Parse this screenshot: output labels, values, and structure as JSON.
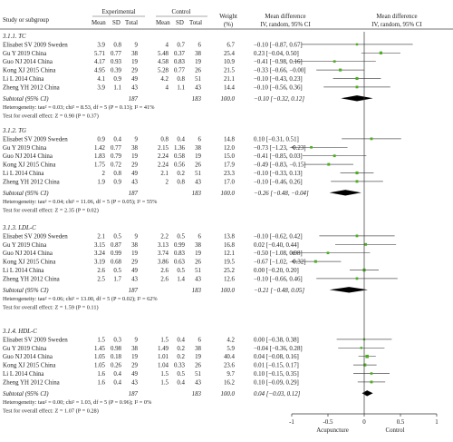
{
  "chart_data": {
    "type": "forest",
    "headers": {
      "study": "Study or subgroup",
      "experimental": "Experimental",
      "control": "Control",
      "mean": "Mean",
      "sd": "SD",
      "total": "Total",
      "weight": "Weight",
      "weight_unit": "(%)",
      "md": "Mean difference",
      "md_method": "IV, random, 95% CI",
      "plot_title": "Mean difference",
      "plot_method": "IV, random, 95% CI"
    },
    "xaxis": {
      "range": [
        -1,
        1
      ],
      "ticks": [
        -1,
        -0.5,
        0,
        0.5,
        1
      ],
      "tick_labels": [
        "-1",
        "-0.5",
        "0",
        "0.5",
        "1"
      ],
      "left_label": "Acupuncture",
      "right_label": "Control"
    },
    "colors": {
      "point": "#4caf1e",
      "diamond": "#000000",
      "line": "#555555"
    },
    "subgroups": [
      {
        "title": "3.1.1. TC",
        "studies": [
          {
            "name": "Elisabet SV 2009 Sweden",
            "e_mean": "3.9",
            "e_sd": "0.8",
            "e_total": "9",
            "c_mean": "4",
            "c_sd": "0.7",
            "c_total": "6",
            "weight": "6.7",
            "ci_text": "−0.10 [−0.87, 0.67]",
            "md": -0.1,
            "lo": -0.87,
            "hi": 0.67
          },
          {
            "name": "Gu Y 2019 China",
            "e_mean": "5.71",
            "e_sd": "0.77",
            "e_total": "38",
            "c_mean": "5.48",
            "c_sd": "0.37",
            "c_total": "38",
            "weight": "25.4",
            "ci_text": "0.23 [−0.04, 0.50]",
            "md": 0.23,
            "lo": -0.04,
            "hi": 0.5
          },
          {
            "name": "Guo NJ 2014 China",
            "e_mean": "4.17",
            "e_sd": "0.93",
            "e_total": "19",
            "c_mean": "4.58",
            "c_sd": "0.83",
            "c_total": "19",
            "weight": "10.9",
            "ci_text": "−0.41 [−0.98, 0.16]",
            "md": -0.41,
            "lo": -0.98,
            "hi": 0.16
          },
          {
            "name": "Kong XJ 2015 China",
            "e_mean": "4.95",
            "e_sd": "0.39",
            "e_total": "29",
            "c_mean": "5.28",
            "c_sd": "0.77",
            "c_total": "26",
            "weight": "21.5",
            "ci_text": "−0.33 [−0.66, −0.00]",
            "md": -0.33,
            "lo": -0.66,
            "hi": -0.0
          },
          {
            "name": "Li L 2014 China",
            "e_mean": "4.1",
            "e_sd": "0.9",
            "e_total": "49",
            "c_mean": "4.2",
            "c_sd": "0.8",
            "c_total": "51",
            "weight": "21.1",
            "ci_text": "−0.10 [−0.43, 0.23]",
            "md": -0.1,
            "lo": -0.43,
            "hi": 0.23
          },
          {
            "name": "Zheng YH 2012 China",
            "e_mean": "3.9",
            "e_sd": "1.1",
            "e_total": "43",
            "c_mean": "4",
            "c_sd": "1.1",
            "c_total": "43",
            "weight": "14.4",
            "ci_text": "−0.10 [−0.56, 0.36]",
            "md": -0.1,
            "lo": -0.56,
            "hi": 0.36
          }
        ],
        "subtotal": {
          "label": "Subtotal (95% CI)",
          "e_total": "187",
          "c_total": "183",
          "weight": "100.0",
          "ci_text": "−0.10 [−0.32, 0.12]",
          "md": -0.1,
          "lo": -0.32,
          "hi": 0.12
        },
        "heterogeneity": "Heterogeneity: tau² = 0.03; chi² = 8.53, df = 5 (P = 0.13); I² = 41%",
        "overall": "Test for overall effect: Z = 0.90 (P = 0.37)"
      },
      {
        "title": "3.1.2. TG",
        "studies": [
          {
            "name": "Elisabet SV 2009 Sweden",
            "e_mean": "0.9",
            "e_sd": "0.4",
            "e_total": "9",
            "c_mean": "0.8",
            "c_sd": "0.4",
            "c_total": "6",
            "weight": "14.8",
            "ci_text": "0.10 [−0.31, 0.51]",
            "md": 0.1,
            "lo": -0.31,
            "hi": 0.51
          },
          {
            "name": "Gu Y 2019 China",
            "e_mean": "1.42",
            "e_sd": "0.77",
            "e_total": "38",
            "c_mean": "2.15",
            "c_sd": "1.36",
            "c_total": "38",
            "weight": "12.0",
            "ci_text": "−0.73 [−1.23, −0.23]",
            "md": -0.73,
            "lo": -1.23,
            "hi": -0.23
          },
          {
            "name": "Guo NJ 2014 China",
            "e_mean": "1.83",
            "e_sd": "0.79",
            "e_total": "19",
            "c_mean": "2.24",
            "c_sd": "0.58",
            "c_total": "19",
            "weight": "15.0",
            "ci_text": "−0.41 [−0.85, 0.03]",
            "md": -0.41,
            "lo": -0.85,
            "hi": 0.03
          },
          {
            "name": "Kong XJ 2015 China",
            "e_mean": "1.75",
            "e_sd": "0.72",
            "e_total": "29",
            "c_mean": "2.24",
            "c_sd": "0.56",
            "c_total": "26",
            "weight": "17.9",
            "ci_text": "−0.49 [−0.83, −0.15]",
            "md": -0.49,
            "lo": -0.83,
            "hi": -0.15
          },
          {
            "name": "Li L 2014 China",
            "e_mean": "2",
            "e_sd": "0.8",
            "e_total": "49",
            "c_mean": "2.1",
            "c_sd": "0.2",
            "c_total": "51",
            "weight": "23.3",
            "ci_text": "−0.10 [−0.33, 0.13]",
            "md": -0.1,
            "lo": -0.33,
            "hi": 0.13
          },
          {
            "name": "Zheng YH 2012 China",
            "e_mean": "1.9",
            "e_sd": "0.9",
            "e_total": "43",
            "c_mean": "2",
            "c_sd": "0.8",
            "c_total": "43",
            "weight": "17.0",
            "ci_text": "−0.10 [−0.46, 0.26]",
            "md": -0.1,
            "lo": -0.46,
            "hi": 0.26
          }
        ],
        "subtotal": {
          "label": "Subtotal (95% CI)",
          "e_total": "187",
          "c_total": "183",
          "weight": "100.0",
          "ci_text": "−0.26 [−0.48, −0.04]",
          "md": -0.26,
          "lo": -0.48,
          "hi": -0.04
        },
        "heterogeneity": "Heterogeneity: tau² = 0.04; chi² = 11.06, df = 5 (P = 0.05); I² = 55%",
        "overall": "Test for overall effect: Z = 2.35 (P = 0.02)"
      },
      {
        "title": "3.1.3. LDL-C",
        "studies": [
          {
            "name": "Elisabet SV 2009 Sweden",
            "e_mean": "2.1",
            "e_sd": "0.5",
            "e_total": "9",
            "c_mean": "2.2",
            "c_sd": "0.5",
            "c_total": "6",
            "weight": "13.8",
            "ci_text": "−0.10 [−0.62, 0.42]",
            "md": -0.1,
            "lo": -0.62,
            "hi": 0.42
          },
          {
            "name": "Gu Y 2019 China",
            "e_mean": "3.15",
            "e_sd": "0.87",
            "e_total": "38",
            "c_mean": "3.13",
            "c_sd": "0.99",
            "c_total": "38",
            "weight": "16.8",
            "ci_text": "0.02 [−0.40, 0.44]",
            "md": 0.02,
            "lo": -0.4,
            "hi": 0.44
          },
          {
            "name": "Guo NJ 2014 China",
            "e_mean": "3.24",
            "e_sd": "0.99",
            "e_total": "19",
            "c_mean": "3.74",
            "c_sd": "0.83",
            "c_total": "19",
            "weight": "12.1",
            "ci_text": "−0.50 [−1.08, 0.08]",
            "md": -0.5,
            "lo": -1.08,
            "hi": 0.08
          },
          {
            "name": "Kong XJ 2015 China",
            "e_mean": "3.19",
            "e_sd": "0.68",
            "e_total": "29",
            "c_mean": "3.86",
            "c_sd": "0.63",
            "c_total": "26",
            "weight": "19.5",
            "ci_text": "−0.67 [−1.02, −0.32]",
            "md": -0.67,
            "lo": -1.02,
            "hi": -0.32
          },
          {
            "name": "Li L 2014 China",
            "e_mean": "2.6",
            "e_sd": "0.5",
            "e_total": "49",
            "c_mean": "2.6",
            "c_sd": "0.5",
            "c_total": "51",
            "weight": "25.2",
            "ci_text": "0.00 [−0.20, 0.20]",
            "md": 0.0,
            "lo": -0.2,
            "hi": 0.2
          },
          {
            "name": "Zheng YH 2012 China",
            "e_mean": "2.5",
            "e_sd": "1.7",
            "e_total": "43",
            "c_mean": "2.6",
            "c_sd": "1.4",
            "c_total": "43",
            "weight": "12.6",
            "ci_text": "−0.10 [−0.66, 0.46]",
            "md": -0.1,
            "lo": -0.66,
            "hi": 0.46
          }
        ],
        "subtotal": {
          "label": "Subtotal (95% CI)",
          "e_total": "187",
          "c_total": "183",
          "weight": "100.0",
          "ci_text": "−0.21 [−0.48, 0.05]",
          "md": -0.21,
          "lo": -0.48,
          "hi": 0.05
        },
        "heterogeneity": "Heterogeneity: tau² = 0.06; chi² = 13.00, df = 5 (P = 0.02); I² = 62%",
        "overall": "Test for overall effect: Z = 1.59 (P = 0.11)"
      },
      {
        "title": "3.1.4. HDL-C",
        "studies": [
          {
            "name": "Elisabet SV 2009 Sweden",
            "e_mean": "1.5",
            "e_sd": "0.3",
            "e_total": "9",
            "c_mean": "1.5",
            "c_sd": "0.4",
            "c_total": "6",
            "weight": "4.2",
            "ci_text": "0.00 [−0.38, 0.38]",
            "md": 0.0,
            "lo": -0.38,
            "hi": 0.38
          },
          {
            "name": "Gu Y 2019 China",
            "e_mean": "1.45",
            "e_sd": "0.98",
            "e_total": "38",
            "c_mean": "1.49",
            "c_sd": "0.2",
            "c_total": "38",
            "weight": "5.9",
            "ci_text": "−0.04 [−0.36, 0.28]",
            "md": -0.04,
            "lo": -0.36,
            "hi": 0.28
          },
          {
            "name": "Guo NJ 2014 China",
            "e_mean": "1.05",
            "e_sd": "0.18",
            "e_total": "19",
            "c_mean": "1.01",
            "c_sd": "0.2",
            "c_total": "19",
            "weight": "40.4",
            "ci_text": "0.04 [−0.08, 0.16]",
            "md": 0.04,
            "lo": -0.08,
            "hi": 0.16
          },
          {
            "name": "Kong XJ 2015 China",
            "e_mean": "1.05",
            "e_sd": "0.26",
            "e_total": "29",
            "c_mean": "1.04",
            "c_sd": "0.33",
            "c_total": "26",
            "weight": "23.6",
            "ci_text": "0.01 [−0.15, 0.17]",
            "md": 0.01,
            "lo": -0.15,
            "hi": 0.17
          },
          {
            "name": "Li L 2014 China",
            "e_mean": "1.6",
            "e_sd": "0.4",
            "e_total": "49",
            "c_mean": "1.5",
            "c_sd": "0.5",
            "c_total": "51",
            "weight": "9.7",
            "ci_text": "0.10 [−0.15, 0.35]",
            "md": 0.1,
            "lo": -0.15,
            "hi": 0.35
          },
          {
            "name": "Zheng YH 2012 China",
            "e_mean": "1.6",
            "e_sd": "0.4",
            "e_total": "43",
            "c_mean": "1.5",
            "c_sd": "0.4",
            "c_total": "43",
            "weight": "16.2",
            "ci_text": "0.10 [−0.09, 0.29]",
            "md": 0.1,
            "lo": -0.09,
            "hi": 0.29
          }
        ],
        "subtotal": {
          "label": "Subtotal (95% CI)",
          "e_total": "187",
          "c_total": "183",
          "weight": "100.0",
          "ci_text": "0.04 [−0.03, 0.12]",
          "md": 0.04,
          "lo": -0.03,
          "hi": 0.12
        },
        "heterogeneity": "Heterogeneity: tau² = 0.00; chi² = 1.03, df = 5 (P = 0.96); I² = 0%",
        "overall": "Test for overall effect: Z = 1.07 (P = 0.28)"
      }
    ]
  }
}
